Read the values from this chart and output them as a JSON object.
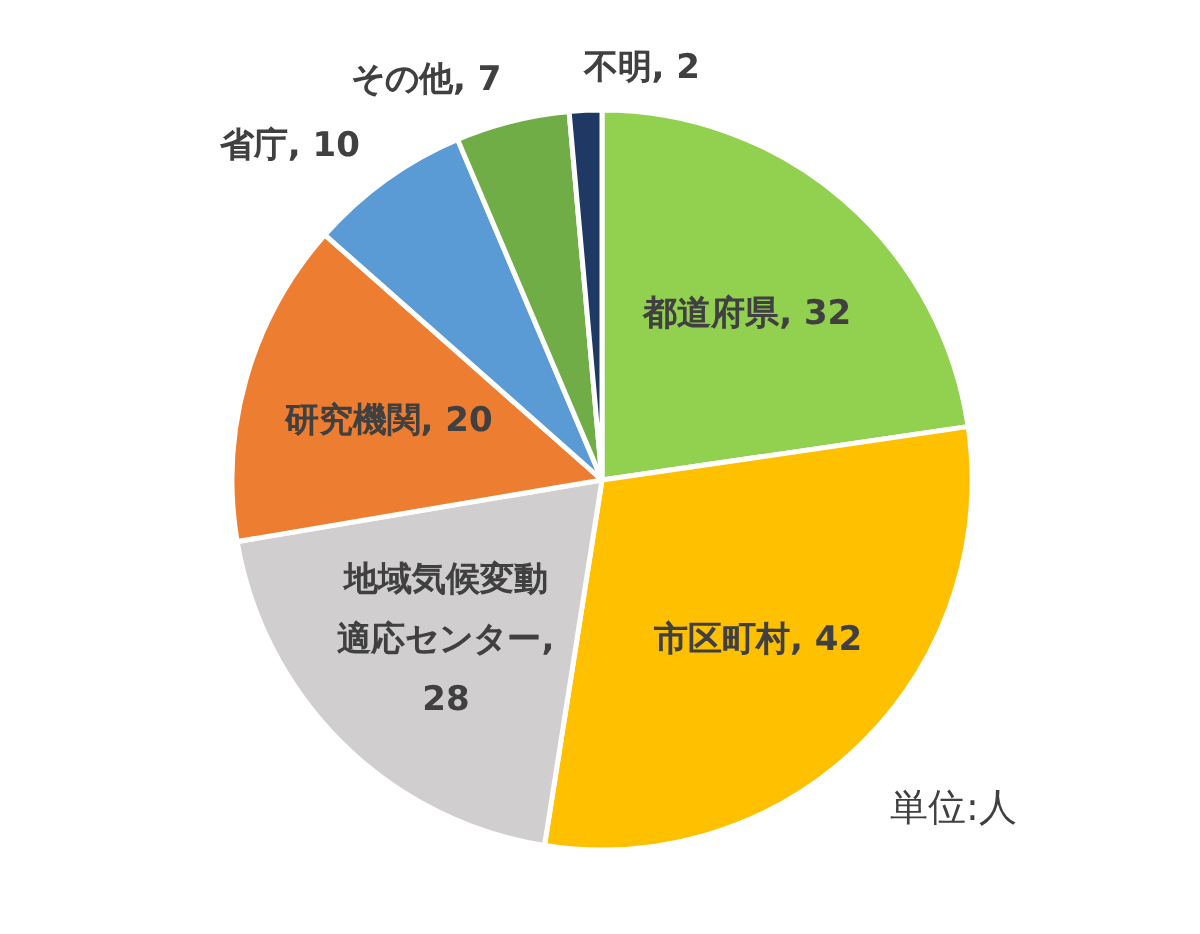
{
  "chart_data": {
    "type": "pie",
    "categories": [
      "都道府県",
      "市区町村",
      "地域気候変動適応センター",
      "研究機関",
      "省庁",
      "その他",
      "不明"
    ],
    "values": [
      32,
      42,
      28,
      20,
      10,
      7,
      2
    ],
    "value_labels": [
      ", 32",
      ", 42",
      ", 28",
      ", 20",
      ", 10",
      ", 7",
      ", 2"
    ],
    "colors": [
      "#92d050",
      "#ffc000",
      "#d0cece",
      "#ed7d31",
      "#5b9bd5",
      "#70ad47",
      "#203864"
    ],
    "annotations": [
      "単位:人"
    ]
  }
}
